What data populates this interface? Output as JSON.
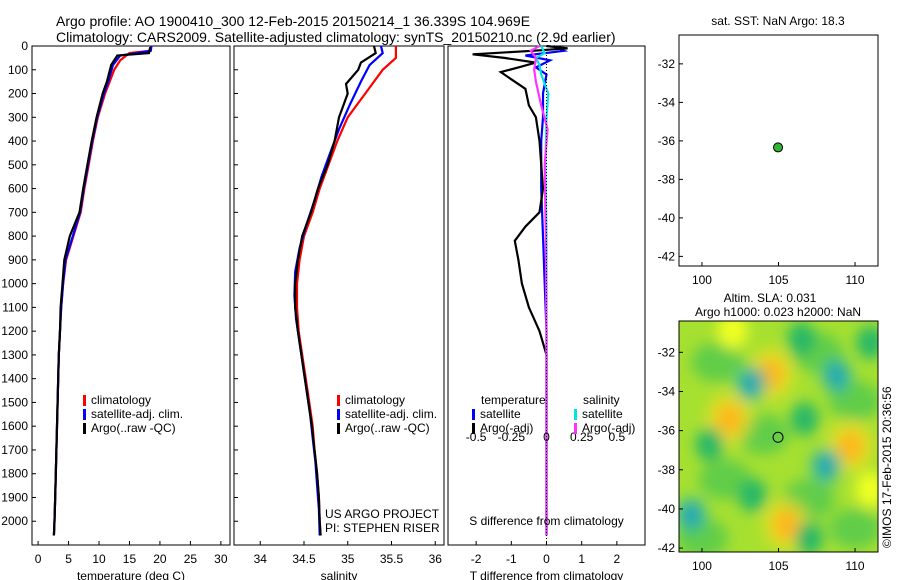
{
  "header": {
    "line1": "Argo profile: AO 1900410_300 12-Feb-2015 20150214_1 36.339S 104.969E",
    "line2": "Climatology: CARS2009. Satellite-adjusted climatology: synTS_20150210.nc (2.9d earlier)"
  },
  "credit": "©IMOS 17-Feb-2015 20:36:56",
  "project": {
    "line1": "US ARGO PROJECT",
    "line2": "PI: STEPHEN RISER"
  },
  "colors": {
    "climatology": "#ff0000",
    "satellite": "#0000ff",
    "argo": "#000000",
    "sal_satellite": "#00e5e5",
    "sal_argo": "#ff33ff",
    "dot": "#2fb52f"
  },
  "chart_data": [
    {
      "type": "line",
      "id": "temperature",
      "xlabel": "temperature (deg C)",
      "ylabel": "",
      "xlim": [
        -1,
        31.5
      ],
      "ylim": [
        2100,
        0
      ],
      "xticks": [
        0,
        5,
        10,
        15,
        20,
        25,
        30
      ],
      "yticks": [
        0,
        100,
        200,
        300,
        400,
        500,
        600,
        700,
        800,
        900,
        1000,
        1100,
        1200,
        1300,
        1400,
        1500,
        1600,
        1700,
        1800,
        1900,
        2000
      ],
      "legend": [
        "climatology",
        "satellite-adj. clim.",
        "Argo(..raw -QC)"
      ],
      "series": [
        {
          "name": "climatology",
          "points": [
            [
              18.6,
              0
            ],
            [
              18.3,
              20
            ],
            [
              15,
              30
            ],
            [
              13.5,
              60
            ],
            [
              12.5,
              100
            ],
            [
              11,
              200
            ],
            [
              9.8,
              300
            ],
            [
              9,
              400
            ],
            [
              8.3,
              500
            ],
            [
              7.6,
              600
            ],
            [
              7,
              700
            ],
            [
              5.8,
              800
            ],
            [
              4.6,
              900
            ],
            [
              4.1,
              1000
            ],
            [
              3.8,
              1100
            ],
            [
              3.6,
              1200
            ],
            [
              3.4,
              1300
            ],
            [
              3.3,
              1400
            ],
            [
              3.2,
              1500
            ],
            [
              3.1,
              1600
            ],
            [
              3,
              1700
            ],
            [
              2.9,
              1800
            ],
            [
              2.8,
              1900
            ],
            [
              2.7,
              2000
            ],
            [
              2.6,
              2060
            ]
          ]
        },
        {
          "name": "satellite-adj. clim.",
          "points": [
            [
              18.6,
              0
            ],
            [
              18.5,
              20
            ],
            [
              13.5,
              40
            ],
            [
              12.3,
              80
            ],
            [
              11.5,
              150
            ],
            [
              10.8,
              200
            ],
            [
              9.7,
              300
            ],
            [
              8.9,
              400
            ],
            [
              8.2,
              500
            ],
            [
              7.5,
              600
            ],
            [
              6.9,
              700
            ],
            [
              5.7,
              800
            ],
            [
              4.5,
              900
            ],
            [
              4.1,
              1000
            ],
            [
              3.8,
              1100
            ],
            [
              3.6,
              1200
            ],
            [
              3.4,
              1300
            ],
            [
              3.3,
              1400
            ],
            [
              3.2,
              1500
            ],
            [
              3.1,
              1600
            ],
            [
              3,
              1700
            ],
            [
              2.9,
              1800
            ],
            [
              2.8,
              1900
            ],
            [
              2.7,
              2000
            ],
            [
              2.6,
              2060
            ]
          ]
        },
        {
          "name": "Argo(..raw -QC)",
          "points": [
            [
              18.4,
              5
            ],
            [
              18.2,
              30
            ],
            [
              13,
              40
            ],
            [
              12,
              80
            ],
            [
              11.3,
              150
            ],
            [
              10.6,
              200
            ],
            [
              9.6,
              300
            ],
            [
              8.8,
              400
            ],
            [
              8.1,
              500
            ],
            [
              7.4,
              600
            ],
            [
              6.8,
              700
            ],
            [
              5.2,
              800
            ],
            [
              4.3,
              900
            ],
            [
              4,
              1000
            ],
            [
              3.7,
              1100
            ],
            [
              3.6,
              1200
            ],
            [
              3.4,
              1300
            ],
            [
              3.3,
              1400
            ],
            [
              3.2,
              1500
            ],
            [
              3.1,
              1600
            ],
            [
              3,
              1700
            ],
            [
              2.9,
              1800
            ],
            [
              2.8,
              1900
            ],
            [
              2.7,
              2000
            ],
            [
              2.6,
              2060
            ]
          ]
        }
      ]
    },
    {
      "type": "line",
      "id": "salinity",
      "xlabel": "salinity",
      "ylabel": "",
      "xlim": [
        33.7,
        36.1
      ],
      "ylim": [
        2100,
        0
      ],
      "xticks": [
        34,
        34.5,
        35,
        35.5,
        36
      ],
      "legend": [
        "climatology",
        "satellite-adj. clim.",
        "Argo(..raw -QC)"
      ],
      "series": [
        {
          "name": "climatology",
          "points": [
            [
              35.55,
              0
            ],
            [
              35.55,
              50
            ],
            [
              35.4,
              100
            ],
            [
              35.2,
              200
            ],
            [
              35.0,
              300
            ],
            [
              34.88,
              400
            ],
            [
              34.78,
              500
            ],
            [
              34.68,
              600
            ],
            [
              34.6,
              700
            ],
            [
              34.5,
              800
            ],
            [
              34.45,
              900
            ],
            [
              34.42,
              1000
            ],
            [
              34.42,
              1100
            ],
            [
              34.44,
              1200
            ],
            [
              34.48,
              1300
            ],
            [
              34.52,
              1400
            ],
            [
              34.56,
              1500
            ],
            [
              34.6,
              1600
            ],
            [
              34.62,
              1700
            ],
            [
              34.65,
              1800
            ],
            [
              34.67,
              1900
            ],
            [
              34.68,
              2000
            ],
            [
              34.69,
              2060
            ]
          ]
        },
        {
          "name": "satellite-adj. clim.",
          "points": [
            [
              35.38,
              0
            ],
            [
              35.4,
              30
            ],
            [
              35.25,
              80
            ],
            [
              35.15,
              150
            ],
            [
              35.02,
              250
            ],
            [
              34.9,
              350
            ],
            [
              34.8,
              450
            ],
            [
              34.7,
              550
            ],
            [
              34.62,
              650
            ],
            [
              34.53,
              750
            ],
            [
              34.45,
              850
            ],
            [
              34.4,
              950
            ],
            [
              34.39,
              1050
            ],
            [
              34.41,
              1150
            ],
            [
              34.45,
              1250
            ],
            [
              34.49,
              1350
            ],
            [
              34.53,
              1450
            ],
            [
              34.57,
              1550
            ],
            [
              34.6,
              1650
            ],
            [
              34.63,
              1750
            ],
            [
              34.65,
              1850
            ],
            [
              34.67,
              1950
            ],
            [
              34.68,
              2060
            ]
          ]
        },
        {
          "name": "Argo(..raw -QC)",
          "points": [
            [
              35.3,
              0
            ],
            [
              35.32,
              30
            ],
            [
              35.15,
              70
            ],
            [
              35.12,
              100
            ],
            [
              34.98,
              160
            ],
            [
              35.0,
              200
            ],
            [
              34.95,
              250
            ],
            [
              34.9,
              300
            ],
            [
              34.85,
              400
            ],
            [
              34.77,
              500
            ],
            [
              34.66,
              600
            ],
            [
              34.58,
              700
            ],
            [
              34.48,
              800
            ],
            [
              34.43,
              900
            ],
            [
              34.4,
              1000
            ],
            [
              34.4,
              1100
            ],
            [
              34.43,
              1200
            ],
            [
              34.47,
              1300
            ],
            [
              34.51,
              1400
            ],
            [
              34.55,
              1500
            ],
            [
              34.59,
              1600
            ],
            [
              34.62,
              1700
            ],
            [
              34.65,
              1800
            ],
            [
              34.67,
              1900
            ],
            [
              34.68,
              2000
            ],
            [
              34.69,
              2060
            ]
          ]
        }
      ]
    },
    {
      "type": "line",
      "id": "difference",
      "xlabel": "T difference from climatology",
      "xlabel_top": "S difference from climatology",
      "ylabel": "",
      "xlim": [
        -2.8,
        2.8
      ],
      "ylim": [
        2100,
        0
      ],
      "xticks": [
        -2,
        -1,
        0,
        1,
        2
      ],
      "s_xticks_labels": [
        "-0.5",
        "-0.25",
        "0",
        "0.25",
        "0.5"
      ],
      "s_xticks_values": [
        -0.5,
        -0.25,
        0,
        0.25,
        0.5
      ],
      "legend_groups": [
        "temperature",
        "salinity"
      ],
      "legend": [
        "satellite",
        "Argo(-adj)",
        "satellite",
        "Argo(-adj)"
      ],
      "series": [
        {
          "name": "temperature satellite",
          "points": [
            [
              0.2,
              0
            ],
            [
              0.5,
              20
            ],
            [
              -0.6,
              40
            ],
            [
              0.1,
              60
            ],
            [
              -0.3,
              90
            ],
            [
              0,
              120
            ],
            [
              -0.1,
              200
            ],
            [
              -0.1,
              300
            ],
            [
              -0.15,
              400
            ],
            [
              -0.15,
              600
            ],
            [
              -0.1,
              800
            ],
            [
              -0.05,
              1000
            ],
            [
              0,
              1200
            ],
            [
              0,
              2060
            ]
          ]
        },
        {
          "name": "temperature Argo(-adj)",
          "points": [
            [
              0,
              0
            ],
            [
              0.6,
              10
            ],
            [
              -0.4,
              20
            ],
            [
              -2.1,
              35
            ],
            [
              -1.2,
              50
            ],
            [
              -0.3,
              70
            ],
            [
              -0.8,
              90
            ],
            [
              -1.3,
              110
            ],
            [
              -1.0,
              140
            ],
            [
              -0.6,
              180
            ],
            [
              -0.5,
              250
            ],
            [
              -0.3,
              300
            ],
            [
              -0.2,
              400
            ],
            [
              -0.1,
              600
            ],
            [
              -0.2,
              700
            ],
            [
              -0.6,
              760
            ],
            [
              -0.9,
              820
            ],
            [
              -0.8,
              900
            ],
            [
              -0.7,
              1000
            ],
            [
              -0.5,
              1100
            ],
            [
              -0.2,
              1200
            ],
            [
              0,
              1300
            ],
            [
              0,
              2060
            ]
          ]
        },
        {
          "name": "salinity satellite",
          "points": [
            [
              -0.15,
              0
            ],
            [
              -0.05,
              30
            ],
            [
              -0.3,
              50
            ],
            [
              -0.2,
              80
            ],
            [
              -0.15,
              120
            ],
            [
              0.05,
              200
            ],
            [
              0,
              300
            ],
            [
              -0.03,
              500
            ],
            [
              0,
              800
            ],
            [
              0,
              1200
            ],
            [
              0,
              2060
            ]
          ]
        },
        {
          "name": "salinity Argo(-adj)",
          "points": [
            [
              -0.2,
              0
            ],
            [
              -0.45,
              20
            ],
            [
              -0.3,
              50
            ],
            [
              -0.35,
              100
            ],
            [
              -0.3,
              150
            ],
            [
              -0.15,
              250
            ],
            [
              0.03,
              350
            ],
            [
              -0.05,
              500
            ],
            [
              -0.02,
              800
            ],
            [
              0,
              1200
            ],
            [
              0,
              2060
            ]
          ]
        }
      ]
    },
    {
      "type": "scatter",
      "id": "sst-map",
      "title": "sat. SST: NaN Argo: 18.3",
      "xlim": [
        98.5,
        111.5
      ],
      "ylim": [
        -42.5,
        -30.5
      ],
      "xticks": [
        100,
        105,
        110
      ],
      "yticks": [
        -32,
        -34,
        -36,
        -38,
        -40,
        -42
      ],
      "points": [
        [
          104.97,
          -36.34
        ]
      ]
    },
    {
      "type": "heatmap",
      "id": "sla-map",
      "title": "Altim. SLA: 0.031",
      "subtitle": "Argo h1000: 0.023 h2000: NaN",
      "xlim": [
        98.5,
        111.5
      ],
      "ylim": [
        -42.2,
        -30.4
      ],
      "xticks": [
        100,
        105,
        110
      ],
      "yticks": [
        -32,
        -34,
        -36,
        -38,
        -40,
        -42
      ],
      "point": [
        104.97,
        -36.34
      ],
      "anomalies": [
        {
          "lon": 104.5,
          "lat": -33.1,
          "value": 0.55
        },
        {
          "lon": 101.8,
          "lat": -35.4,
          "value": 0.6
        },
        {
          "lon": 109.7,
          "lat": -36.8,
          "value": 0.6
        },
        {
          "lon": 105.5,
          "lat": -40.8,
          "value": 0.5
        },
        {
          "lon": 111,
          "lat": -39,
          "value": 0.4
        },
        {
          "lon": 103.2,
          "lat": -33.6,
          "value": -0.6
        },
        {
          "lon": 108.8,
          "lat": -33.2,
          "value": -0.6
        },
        {
          "lon": 108.1,
          "lat": -37.8,
          "value": -0.55
        },
        {
          "lon": 99.3,
          "lat": -40.3,
          "value": -0.5
        },
        {
          "lon": 100.5,
          "lat": -36.7,
          "value": -0.45
        },
        {
          "lon": 106.7,
          "lat": -35.4,
          "value": -0.35
        },
        {
          "lon": 103.3,
          "lat": -39.3,
          "value": -0.3
        },
        {
          "lon": 111,
          "lat": -31.5,
          "value": -0.35
        },
        {
          "lon": 106.5,
          "lat": -31.3,
          "value": -0.25
        },
        {
          "lon": 102,
          "lat": -30.9,
          "value": 0.25
        },
        {
          "lon": 107,
          "lat": -41.5,
          "value": -0.3
        }
      ]
    }
  ]
}
